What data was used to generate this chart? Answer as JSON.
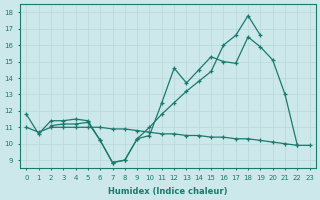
{
  "bg_color": "#cce8ea",
  "grid_color": "#b0d4d6",
  "line_color": "#1a7a6e",
  "xlabel": "Humidex (Indice chaleur)",
  "xlim": [
    -0.5,
    23.5
  ],
  "ylim": [
    8.5,
    18.5
  ],
  "yticks": [
    9,
    10,
    11,
    12,
    13,
    14,
    15,
    16,
    17,
    18
  ],
  "xticks": [
    0,
    1,
    2,
    3,
    4,
    5,
    6,
    7,
    8,
    9,
    10,
    11,
    12,
    13,
    14,
    15,
    16,
    17,
    18,
    19,
    20,
    21,
    22,
    23
  ],
  "lineA_x": [
    0,
    1,
    2,
    3,
    4,
    5,
    6,
    7,
    8,
    9,
    10,
    11,
    12,
    13,
    14,
    15,
    16,
    17,
    18,
    19,
    20,
    21,
    22
  ],
  "lineA_y": [
    11.8,
    10.6,
    11.4,
    11.4,
    11.5,
    11.4,
    10.2,
    8.85,
    9.0,
    10.3,
    10.5,
    12.5,
    14.6,
    13.7,
    14.5,
    15.3,
    15.0,
    14.9,
    16.5,
    15.9,
    15.1,
    13.0,
    9.9
  ],
  "lineB_x": [
    2,
    3,
    4,
    5,
    6,
    7,
    8,
    9,
    10,
    11,
    12,
    13,
    14,
    15,
    16,
    17,
    18,
    19
  ],
  "lineB_y": [
    11.1,
    11.2,
    11.2,
    11.3,
    10.2,
    8.85,
    9.0,
    10.3,
    11.0,
    11.8,
    12.5,
    13.2,
    13.8,
    14.4,
    16.0,
    16.6,
    17.8,
    16.6
  ],
  "lineC_x": [
    0,
    1,
    2,
    3,
    4,
    5,
    6,
    7,
    8,
    9,
    10,
    11,
    12,
    13,
    14,
    15,
    16,
    17,
    18,
    19,
    20,
    21,
    22,
    23
  ],
  "lineC_y": [
    11.0,
    10.7,
    11.0,
    11.0,
    11.0,
    11.0,
    11.0,
    10.9,
    10.9,
    10.8,
    10.7,
    10.6,
    10.6,
    10.5,
    10.5,
    10.4,
    10.4,
    10.3,
    10.3,
    10.2,
    10.1,
    10.0,
    9.9,
    9.9
  ]
}
